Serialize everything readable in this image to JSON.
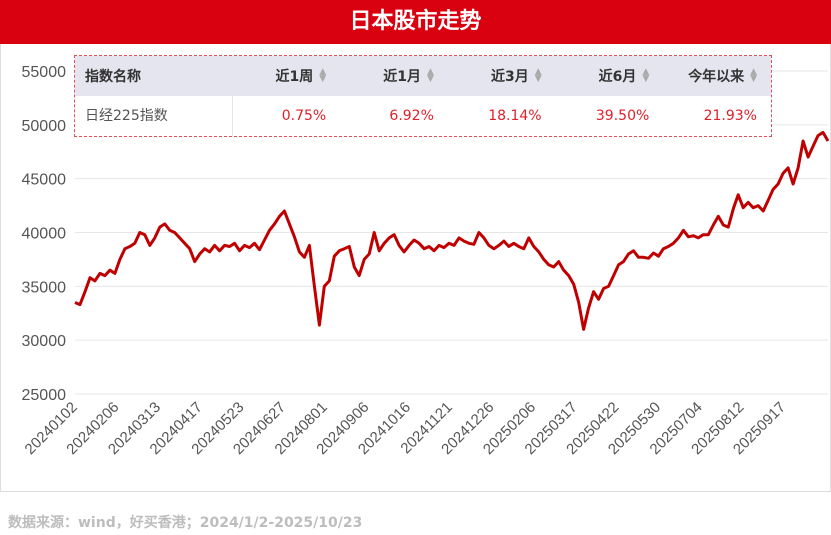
{
  "title": "日本股市走势",
  "table": {
    "headers": [
      "指数名称",
      "近1周",
      "近1月",
      "近3月",
      "近6月",
      "今年以来"
    ],
    "row": [
      "日经225指数",
      "0.75%",
      "6.92%",
      "18.14%",
      "39.50%",
      "21.93%"
    ]
  },
  "source": "数据来源：wind，好买香港；2024/1/2-2025/10/23",
  "colors": {
    "brand": "#d9000f",
    "line": "#c00000",
    "up": "#e0202a"
  },
  "chart_data": {
    "type": "line",
    "title": "日本股市走势",
    "xlabel": "",
    "ylabel": "",
    "ylim": [
      25000,
      55000
    ],
    "yticks": [
      25000,
      30000,
      35000,
      40000,
      45000,
      50000,
      55000
    ],
    "xticks": [
      "20240102",
      "20240206",
      "20240313",
      "20240417",
      "20240523",
      "20240627",
      "20240801",
      "20240906",
      "20241016",
      "20241121",
      "20241226",
      "20250206",
      "20250317",
      "20250422",
      "20250530",
      "20250704",
      "20250812",
      "20250917"
    ],
    "series": [
      {
        "name": "日经225指数",
        "values": [
          33500,
          33300,
          34500,
          35800,
          35500,
          36200,
          36000,
          36500,
          36200,
          37500,
          38500,
          38700,
          39000,
          40000,
          39800,
          38800,
          39500,
          40500,
          40800,
          40200,
          40000,
          39500,
          39000,
          38500,
          37300,
          38000,
          38500,
          38200,
          38800,
          38300,
          38800,
          38700,
          39000,
          38300,
          38800,
          38600,
          39000,
          38400,
          39300,
          40200,
          40800,
          41500,
          42000,
          40800,
          39600,
          38200,
          37700,
          38800,
          35000,
          31400,
          35000,
          35500,
          37800,
          38300,
          38500,
          38700,
          36800,
          36000,
          37500,
          38000,
          40000,
          38300,
          39000,
          39500,
          39800,
          38800,
          38200,
          38800,
          39300,
          39000,
          38500,
          38700,
          38300,
          38800,
          38600,
          39000,
          38800,
          39500,
          39200,
          39000,
          38900,
          40000,
          39500,
          38800,
          38500,
          38800,
          39200,
          38700,
          39000,
          38700,
          38500,
          39500,
          38700,
          38200,
          37500,
          37000,
          36800,
          37300,
          36500,
          36000,
          35200,
          33500,
          31000,
          33000,
          34500,
          33800,
          34800,
          35000,
          36000,
          37000,
          37300,
          38000,
          38300,
          37700,
          37700,
          37600,
          38100,
          37800,
          38500,
          38700,
          39000,
          39500,
          40200,
          39600,
          39700,
          39500,
          39800,
          39800,
          40700,
          41500,
          40700,
          40500,
          42200,
          43500,
          42300,
          42800,
          42300,
          42500,
          42000,
          43000,
          44000,
          44500,
          45500,
          46000,
          44500,
          46000,
          48500,
          47000,
          48000,
          49000,
          49300,
          48500
        ]
      }
    ]
  }
}
